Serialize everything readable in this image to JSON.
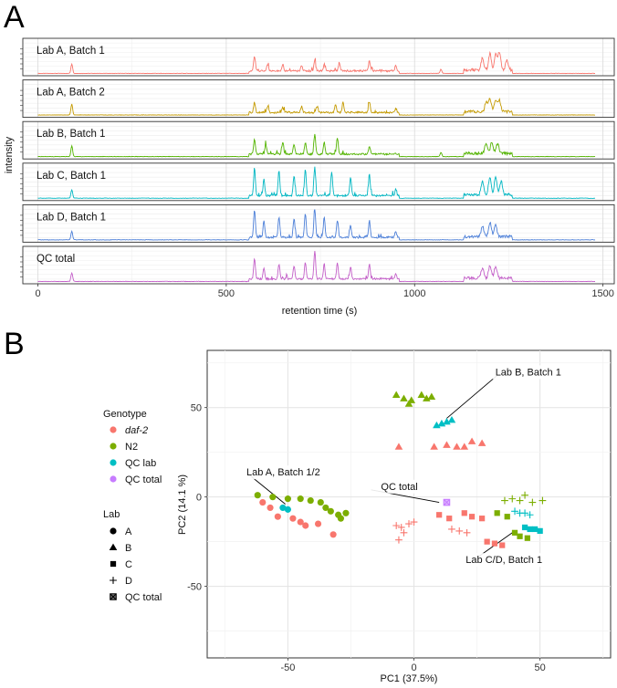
{
  "panel_a": {
    "letter": "A"
  },
  "panel_b": {
    "letter": "B"
  },
  "chart_data": [
    {
      "type": "line",
      "panel": "A",
      "xlabel": "retention time (s)",
      "ylabel": "intensity",
      "xlim": [
        -40,
        1530
      ],
      "x_ticks": [
        0,
        500,
        1000,
        1500
      ],
      "x_tick_labels": [
        "0",
        "500",
        "1000",
        "1500"
      ],
      "grid": true,
      "peaks_note": "approximate peak positions (s) and relative heights read from the chromatograms",
      "series": [
        {
          "name": "Lab A, Batch 1",
          "color": "#F8766D",
          "peaks": [
            [
              90,
              0.28
            ],
            [
              575,
              0.45
            ],
            [
              610,
              0.18
            ],
            [
              650,
              0.2
            ],
            [
              700,
              0.17
            ],
            [
              735,
              0.3
            ],
            [
              760,
              0.2
            ],
            [
              800,
              0.25
            ],
            [
              880,
              0.3
            ],
            [
              950,
              0.14
            ],
            [
              1070,
              0.12
            ],
            [
              1180,
              0.35
            ],
            [
              1200,
              0.5
            ],
            [
              1215,
              0.45
            ],
            [
              1225,
              0.55
            ],
            [
              1245,
              0.3
            ]
          ]
        },
        {
          "name": "Lab A, Batch 2",
          "color": "#C49A00",
          "peaks": [
            [
              90,
              0.32
            ],
            [
              575,
              0.3
            ],
            [
              610,
              0.18
            ],
            [
              650,
              0.15
            ],
            [
              700,
              0.18
            ],
            [
              740,
              0.17
            ],
            [
              790,
              0.25
            ],
            [
              810,
              0.3
            ],
            [
              880,
              0.32
            ],
            [
              950,
              0.12
            ],
            [
              1190,
              0.3
            ],
            [
              1200,
              0.38
            ],
            [
              1215,
              0.32
            ],
            [
              1225,
              0.35
            ]
          ]
        },
        {
          "name": "Lab B, Batch 1",
          "color": "#53B400",
          "peaks": [
            [
              90,
              0.32
            ],
            [
              575,
              0.45
            ],
            [
              605,
              0.3
            ],
            [
              650,
              0.35
            ],
            [
              680,
              0.3
            ],
            [
              710,
              0.35
            ],
            [
              735,
              0.6
            ],
            [
              760,
              0.35
            ],
            [
              795,
              0.5
            ],
            [
              880,
              0.25
            ],
            [
              1070,
              0.12
            ],
            [
              1190,
              0.3
            ],
            [
              1205,
              0.32
            ],
            [
              1220,
              0.28
            ]
          ]
        },
        {
          "name": "Lab C, Batch 1",
          "color": "#00B6C2",
          "peaks": [
            [
              90,
              0.25
            ],
            [
              575,
              0.82
            ],
            [
              600,
              0.5
            ],
            [
              640,
              0.75
            ],
            [
              680,
              0.6
            ],
            [
              710,
              0.8
            ],
            [
              735,
              0.85
            ],
            [
              780,
              0.7
            ],
            [
              830,
              0.55
            ],
            [
              880,
              0.65
            ],
            [
              950,
              0.2
            ],
            [
              1180,
              0.4
            ],
            [
              1200,
              0.55
            ],
            [
              1215,
              0.5
            ],
            [
              1230,
              0.4
            ]
          ]
        },
        {
          "name": "Lab D, Batch 1",
          "color": "#4C7FD8",
          "peaks": [
            [
              90,
              0.25
            ],
            [
              575,
              0.82
            ],
            [
              600,
              0.5
            ],
            [
              640,
              0.6
            ],
            [
              680,
              0.55
            ],
            [
              710,
              0.7
            ],
            [
              735,
              0.85
            ],
            [
              760,
              0.6
            ],
            [
              795,
              0.5
            ],
            [
              830,
              0.35
            ],
            [
              880,
              0.5
            ],
            [
              950,
              0.18
            ],
            [
              1180,
              0.3
            ],
            [
              1200,
              0.42
            ],
            [
              1215,
              0.35
            ]
          ]
        },
        {
          "name": "QC total",
          "color": "#C35FC8",
          "peaks": [
            [
              90,
              0.25
            ],
            [
              575,
              0.6
            ],
            [
              600,
              0.3
            ],
            [
              640,
              0.45
            ],
            [
              680,
              0.4
            ],
            [
              710,
              0.5
            ],
            [
              735,
              0.85
            ],
            [
              760,
              0.45
            ],
            [
              795,
              0.45
            ],
            [
              830,
              0.35
            ],
            [
              880,
              0.45
            ],
            [
              950,
              0.15
            ],
            [
              1180,
              0.3
            ],
            [
              1200,
              0.38
            ],
            [
              1215,
              0.35
            ]
          ]
        }
      ]
    },
    {
      "type": "scatter",
      "panel": "B",
      "xlabel": "PC1 (37.5%)",
      "ylabel": "PC2 (14.1 %)",
      "xlim": [
        -82,
        78
      ],
      "ylim": [
        -90,
        82
      ],
      "x_ticks": [
        -50,
        0,
        50
      ],
      "x_tick_labels": [
        "-50",
        "0",
        "50"
      ],
      "y_ticks": [
        -50,
        0,
        50
      ],
      "y_tick_labels": [
        "-50",
        "0",
        "50"
      ],
      "grid": true,
      "legend": {
        "genotype": {
          "title": "Genotype",
          "entries": [
            {
              "label": "daf-2",
              "color": "#F8766D",
              "italic": true
            },
            {
              "label": "N2",
              "color": "#7CAE00"
            },
            {
              "label": "QC lab",
              "color": "#00BFC4"
            },
            {
              "label": "QC total",
              "color": "#C77CFF"
            }
          ]
        },
        "lab": {
          "title": "Lab",
          "entries": [
            {
              "label": "A",
              "shape": "circle"
            },
            {
              "label": "B",
              "shape": "triangle"
            },
            {
              "label": "C",
              "shape": "square"
            },
            {
              "label": "D",
              "shape": "plus"
            },
            {
              "label": "QC total",
              "shape": "boxx"
            }
          ]
        }
      },
      "annotations": [
        {
          "text": "Lab B, Batch 1",
          "x": 33,
          "y": 68,
          "anchor_x": 13,
          "anchor_y": 44
        },
        {
          "text": "Lab A, Batch 1/2",
          "x": -65,
          "y": 12,
          "anchor_x": -51,
          "anchor_y": -4
        },
        {
          "text": "QC total",
          "x": -17,
          "y": 4,
          "anchor_x": 10,
          "anchor_y": -3
        },
        {
          "text": "Lab C/D, Batch 1",
          "x": 22,
          "y": -37,
          "anchor_x": 40,
          "anchor_y": -19
        }
      ],
      "points": [
        {
          "g": "N2",
          "s": "triangle",
          "x": -7,
          "y": 57
        },
        {
          "g": "N2",
          "s": "triangle",
          "x": -4,
          "y": 55
        },
        {
          "g": "N2",
          "s": "triangle",
          "x": -2,
          "y": 52
        },
        {
          "g": "N2",
          "s": "triangle",
          "x": -1,
          "y": 54
        },
        {
          "g": "N2",
          "s": "triangle",
          "x": 3,
          "y": 57
        },
        {
          "g": "N2",
          "s": "triangle",
          "x": 5,
          "y": 55
        },
        {
          "g": "N2",
          "s": "triangle",
          "x": 7,
          "y": 56
        },
        {
          "g": "QC lab",
          "s": "triangle",
          "x": 9,
          "y": 40
        },
        {
          "g": "QC lab",
          "s": "triangle",
          "x": 11,
          "y": 41
        },
        {
          "g": "QC lab",
          "s": "triangle",
          "x": 13,
          "y": 42
        },
        {
          "g": "QC lab",
          "s": "triangle",
          "x": 15,
          "y": 43
        },
        {
          "g": "daf-2",
          "s": "triangle",
          "x": -6,
          "y": 28
        },
        {
          "g": "daf-2",
          "s": "triangle",
          "x": 8,
          "y": 28
        },
        {
          "g": "daf-2",
          "s": "triangle",
          "x": 13,
          "y": 29
        },
        {
          "g": "daf-2",
          "s": "triangle",
          "x": 17,
          "y": 28
        },
        {
          "g": "daf-2",
          "s": "triangle",
          "x": 20,
          "y": 28
        },
        {
          "g": "daf-2",
          "s": "triangle",
          "x": 23,
          "y": 31
        },
        {
          "g": "daf-2",
          "s": "triangle",
          "x": 27,
          "y": 30
        },
        {
          "g": "N2",
          "s": "circle",
          "x": -62,
          "y": 1
        },
        {
          "g": "N2",
          "s": "circle",
          "x": -56,
          "y": 0
        },
        {
          "g": "N2",
          "s": "circle",
          "x": -50,
          "y": -1
        },
        {
          "g": "N2",
          "s": "circle",
          "x": -45,
          "y": -1
        },
        {
          "g": "N2",
          "s": "circle",
          "x": -41,
          "y": -2
        },
        {
          "g": "N2",
          "s": "circle",
          "x": -37,
          "y": -3
        },
        {
          "g": "N2",
          "s": "circle",
          "x": -35,
          "y": -6
        },
        {
          "g": "N2",
          "s": "circle",
          "x": -33,
          "y": -8
        },
        {
          "g": "N2",
          "s": "circle",
          "x": -30,
          "y": -10
        },
        {
          "g": "N2",
          "s": "circle",
          "x": -29,
          "y": -12
        },
        {
          "g": "N2",
          "s": "circle",
          "x": -27,
          "y": -9
        },
        {
          "g": "QC lab",
          "s": "circle",
          "x": -52,
          "y": -6
        },
        {
          "g": "QC lab",
          "s": "circle",
          "x": -50,
          "y": -7
        },
        {
          "g": "daf-2",
          "s": "circle",
          "x": -60,
          "y": -3
        },
        {
          "g": "daf-2",
          "s": "circle",
          "x": -57,
          "y": -6
        },
        {
          "g": "daf-2",
          "s": "circle",
          "x": -54,
          "y": -11
        },
        {
          "g": "daf-2",
          "s": "circle",
          "x": -48,
          "y": -12
        },
        {
          "g": "daf-2",
          "s": "circle",
          "x": -45,
          "y": -14
        },
        {
          "g": "daf-2",
          "s": "circle",
          "x": -43,
          "y": -16
        },
        {
          "g": "daf-2",
          "s": "circle",
          "x": -38,
          "y": -15
        },
        {
          "g": "daf-2",
          "s": "circle",
          "x": -32,
          "y": -21
        },
        {
          "g": "daf-2",
          "s": "plus",
          "x": -7,
          "y": -16
        },
        {
          "g": "daf-2",
          "s": "plus",
          "x": -5,
          "y": -17
        },
        {
          "g": "daf-2",
          "s": "plus",
          "x": -4,
          "y": -20
        },
        {
          "g": "daf-2",
          "s": "plus",
          "x": -2,
          "y": -15
        },
        {
          "g": "daf-2",
          "s": "plus",
          "x": 0,
          "y": -14
        },
        {
          "g": "daf-2",
          "s": "plus",
          "x": -6,
          "y": -24
        },
        {
          "g": "daf-2",
          "s": "plus",
          "x": 15,
          "y": -18
        },
        {
          "g": "daf-2",
          "s": "plus",
          "x": 18,
          "y": -19
        },
        {
          "g": "daf-2",
          "s": "plus",
          "x": 21,
          "y": -20
        },
        {
          "g": "daf-2",
          "s": "square",
          "x": 10,
          "y": -10
        },
        {
          "g": "daf-2",
          "s": "square",
          "x": 14,
          "y": -12
        },
        {
          "g": "daf-2",
          "s": "square",
          "x": 20,
          "y": -9
        },
        {
          "g": "daf-2",
          "s": "square",
          "x": 23,
          "y": -11
        },
        {
          "g": "daf-2",
          "s": "square",
          "x": 27,
          "y": -12
        },
        {
          "g": "daf-2",
          "s": "square",
          "x": 29,
          "y": -25
        },
        {
          "g": "daf-2",
          "s": "square",
          "x": 32,
          "y": -26
        },
        {
          "g": "daf-2",
          "s": "square",
          "x": 35,
          "y": -27
        },
        {
          "g": "N2",
          "s": "square",
          "x": 33,
          "y": -9
        },
        {
          "g": "N2",
          "s": "square",
          "x": 37,
          "y": -11
        },
        {
          "g": "N2",
          "s": "square",
          "x": 40,
          "y": -20
        },
        {
          "g": "N2",
          "s": "square",
          "x": 42,
          "y": -22
        },
        {
          "g": "N2",
          "s": "square",
          "x": 45,
          "y": -23
        },
        {
          "g": "N2",
          "s": "plus",
          "x": 36,
          "y": -2
        },
        {
          "g": "N2",
          "s": "plus",
          "x": 39,
          "y": -1
        },
        {
          "g": "N2",
          "s": "plus",
          "x": 42,
          "y": -2
        },
        {
          "g": "N2",
          "s": "plus",
          "x": 44,
          "y": 1
        },
        {
          "g": "N2",
          "s": "plus",
          "x": 47,
          "y": -3
        },
        {
          "g": "N2",
          "s": "plus",
          "x": 51,
          "y": -2
        },
        {
          "g": "QC lab",
          "s": "square",
          "x": 44,
          "y": -17
        },
        {
          "g": "QC lab",
          "s": "square",
          "x": 46,
          "y": -18
        },
        {
          "g": "QC lab",
          "s": "square",
          "x": 48,
          "y": -18
        },
        {
          "g": "QC lab",
          "s": "square",
          "x": 50,
          "y": -19
        },
        {
          "g": "QC lab",
          "s": "plus",
          "x": 40,
          "y": -8
        },
        {
          "g": "QC lab",
          "s": "plus",
          "x": 42,
          "y": -9
        },
        {
          "g": "QC lab",
          "s": "plus",
          "x": 44,
          "y": -9
        },
        {
          "g": "QC lab",
          "s": "plus",
          "x": 46,
          "y": -10
        },
        {
          "g": "QC total",
          "s": "boxx",
          "x": 13,
          "y": -3
        }
      ]
    }
  ]
}
